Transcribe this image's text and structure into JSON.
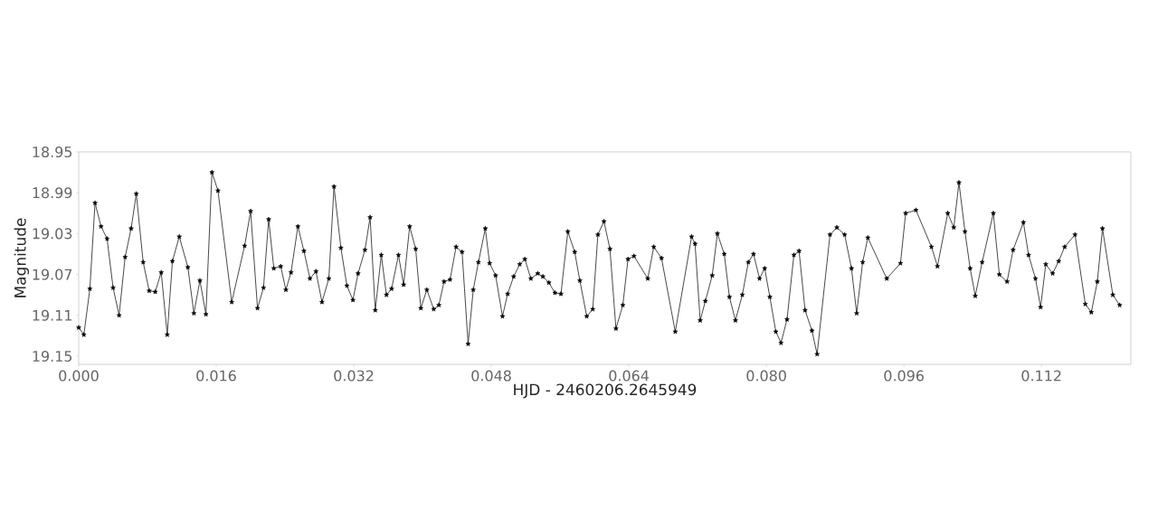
{
  "chart_data": {
    "type": "line",
    "xlabel": "HJD - 2460206.2645949",
    "ylabel": "Magnitude",
    "x": [
      0.0,
      0.0006,
      0.0013,
      0.0019,
      0.0026,
      0.0033,
      0.004,
      0.0047,
      0.0054,
      0.0061,
      0.0067,
      0.0075,
      0.0082,
      0.0089,
      0.0096,
      0.0103,
      0.0109,
      0.0117,
      0.0127,
      0.0134,
      0.0141,
      0.0148,
      0.0155,
      0.0162,
      0.0178,
      0.0193,
      0.02,
      0.0208,
      0.0215,
      0.0221,
      0.0227,
      0.0235,
      0.0241,
      0.0247,
      0.0255,
      0.0262,
      0.0269,
      0.0276,
      0.0283,
      0.0291,
      0.0297,
      0.0305,
      0.0312,
      0.0319,
      0.0325,
      0.0333,
      0.0339,
      0.0345,
      0.0352,
      0.0358,
      0.0364,
      0.0372,
      0.0378,
      0.0385,
      0.0392,
      0.0398,
      0.0405,
      0.0413,
      0.0419,
      0.0425,
      0.0432,
      0.0439,
      0.0446,
      0.0453,
      0.0459,
      0.0465,
      0.0473,
      0.0478,
      0.0485,
      0.0493,
      0.0499,
      0.0506,
      0.0513,
      0.0519,
      0.0526,
      0.0534,
      0.054,
      0.0547,
      0.0554,
      0.0561,
      0.0569,
      0.0577,
      0.0583,
      0.0591,
      0.0598,
      0.0604,
      0.0611,
      0.0618,
      0.0625,
      0.0633,
      0.0639,
      0.0646,
      0.0662,
      0.0669,
      0.0678,
      0.0694,
      0.0713,
      0.0717,
      0.0723,
      0.0729,
      0.0737,
      0.0743,
      0.0751,
      0.0757,
      0.0764,
      0.0772,
      0.0779,
      0.0785,
      0.0792,
      0.0798,
      0.0804,
      0.0811,
      0.0817,
      0.0824,
      0.0832,
      0.0838,
      0.0845,
      0.0853,
      0.0859,
      0.0874,
      0.0882,
      0.0891,
      0.0899,
      0.0905,
      0.0912,
      0.0918,
      0.094,
      0.0956,
      0.0962,
      0.0974,
      0.0992,
      0.0999,
      0.1011,
      0.1018,
      0.1024,
      0.1031,
      0.1037,
      0.1043,
      0.1051,
      0.1064,
      0.1071,
      0.108,
      0.1087,
      0.1099,
      0.1105,
      0.1113,
      0.1119,
      0.1125,
      0.1133,
      0.114,
      0.1147,
      0.1159,
      0.1171,
      0.1178,
      0.1185,
      0.1191,
      0.1203,
      0.1211
    ],
    "series": [
      {
        "color": "#333333",
        "values": [
          19.122,
          19.129,
          19.084,
          19.0,
          19.023,
          19.035,
          19.083,
          19.11,
          19.053,
          19.025,
          18.991,
          19.058,
          19.086,
          19.087,
          19.068,
          19.129,
          19.057,
          19.033,
          19.063,
          19.108,
          19.076,
          19.109,
          18.97,
          18.988,
          19.097,
          19.042,
          19.008,
          19.103,
          19.083,
          19.016,
          19.064,
          19.062,
          19.085,
          19.068,
          19.023,
          19.047,
          19.074,
          19.067,
          19.097,
          19.074,
          18.984,
          19.044,
          19.081,
          19.095,
          19.069,
          19.046,
          19.014,
          19.105,
          19.051,
          19.09,
          19.084,
          19.051,
          19.08,
          19.023,
          19.045,
          19.103,
          19.085,
          19.104,
          19.1,
          19.077,
          19.075,
          19.043,
          19.048,
          19.138,
          19.085,
          19.058,
          19.025,
          19.059,
          19.071,
          19.111,
          19.089,
          19.072,
          19.06,
          19.055,
          19.074,
          19.069,
          19.072,
          19.078,
          19.088,
          19.089,
          19.028,
          19.048,
          19.076,
          19.111,
          19.104,
          19.031,
          19.018,
          19.045,
          19.123,
          19.1,
          19.055,
          19.052,
          19.074,
          19.043,
          19.054,
          19.126,
          19.033,
          19.04,
          19.115,
          19.096,
          19.071,
          19.03,
          19.05,
          19.092,
          19.115,
          19.09,
          19.058,
          19.05,
          19.074,
          19.064,
          19.092,
          19.126,
          19.137,
          19.114,
          19.051,
          19.047,
          19.105,
          19.125,
          19.148,
          19.031,
          19.024,
          19.031,
          19.064,
          19.108,
          19.058,
          19.034,
          19.074,
          19.059,
          19.01,
          19.007,
          19.043,
          19.062,
          19.01,
          19.024,
          18.98,
          19.028,
          19.064,
          19.091,
          19.058,
          19.01,
          19.07,
          19.077,
          19.046,
          19.019,
          19.051,
          19.074,
          19.102,
          19.06,
          19.069,
          19.057,
          19.043,
          19.031,
          19.099,
          19.107,
          19.077,
          19.025,
          19.09,
          19.1
        ]
      }
    ],
    "xlim": [
      0,
      0.1224
    ],
    "ylim": [
      19.158,
      18.95
    ],
    "xticks": [
      {
        "value": 0,
        "label": "0.000"
      },
      0.016,
      0.032,
      0.048,
      0.064,
      {
        "value": 0.08,
        "label": "0.080"
      },
      0.096,
      0.112
    ],
    "yticks": [
      18.95,
      18.99,
      19.03,
      19.07,
      19.11,
      19.15
    ],
    "marker": "star",
    "line_style": "solid",
    "grid": false
  }
}
